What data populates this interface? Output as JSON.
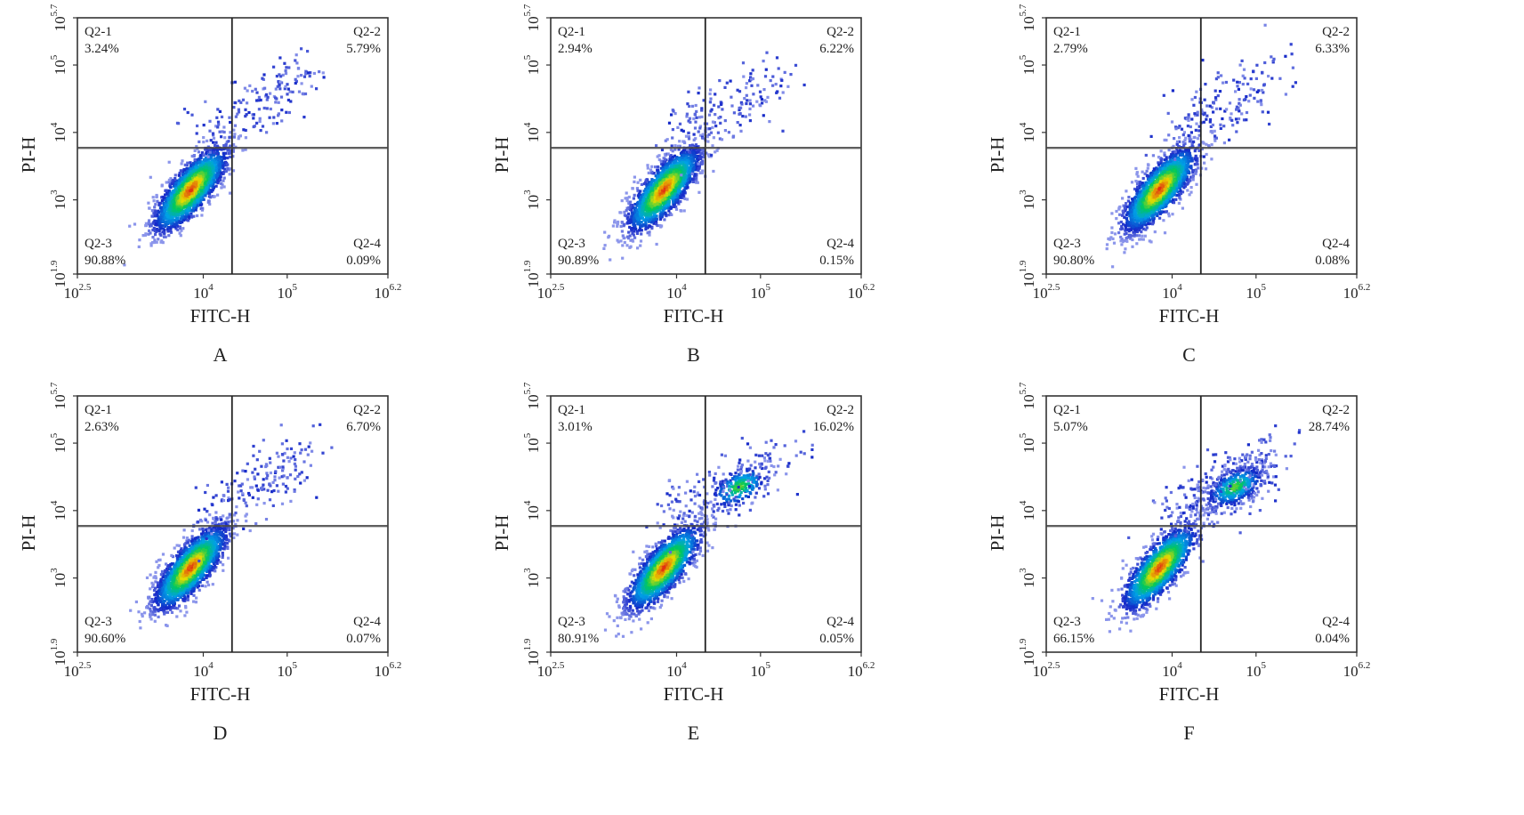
{
  "figure": {
    "panels": [
      {
        "letter": "A"
      },
      {
        "letter": "B"
      },
      {
        "letter": "C"
      },
      {
        "letter": "D"
      },
      {
        "letter": "E"
      },
      {
        "letter": "F"
      }
    ]
  },
  "chart_data": [
    {
      "type": "scatter",
      "panel_label": "A",
      "xlabel": "FITC-H",
      "ylabel": "PI-H",
      "x_scale": "log10",
      "y_scale": "log10",
      "xlim": [
        316.2,
        1584893
      ],
      "ylim": [
        79.4,
        501187
      ],
      "x_tick_labels": [
        {
          "base": "10",
          "exp": "2.5"
        },
        {
          "base": "10",
          "exp": "4"
        },
        {
          "base": "10",
          "exp": "5"
        },
        {
          "base": "10",
          "exp": "6.2"
        }
      ],
      "y_tick_labels": [
        {
          "base": "10",
          "exp": "1.9"
        },
        {
          "base": "10",
          "exp": "3"
        },
        {
          "base": "10",
          "exp": "4"
        },
        {
          "base": "10",
          "exp": "5"
        },
        {
          "base": "10",
          "exp": "5.7"
        }
      ],
      "gate": {
        "x": 22000,
        "y": 5900
      },
      "quadrants": [
        {
          "name": "Q2-1",
          "value": "3.24%",
          "corner": "top-left"
        },
        {
          "name": "Q2-2",
          "value": "5.79%",
          "corner": "top-right"
        },
        {
          "name": "Q2-3",
          "value": "90.88%",
          "corner": "bottom-left"
        },
        {
          "name": "Q2-4",
          "value": "0.09%",
          "corner": "bottom-right"
        }
      ]
    },
    {
      "type": "scatter",
      "panel_label": "B",
      "xlabel": "FITC-H",
      "ylabel": "PI-H",
      "x_scale": "log10",
      "y_scale": "log10",
      "xlim": [
        316.2,
        1584893
      ],
      "ylim": [
        79.4,
        501187
      ],
      "x_tick_labels": [
        {
          "base": "10",
          "exp": "2.5"
        },
        {
          "base": "10",
          "exp": "4"
        },
        {
          "base": "10",
          "exp": "5"
        },
        {
          "base": "10",
          "exp": "6.2"
        }
      ],
      "y_tick_labels": [
        {
          "base": "10",
          "exp": "1.9"
        },
        {
          "base": "10",
          "exp": "3"
        },
        {
          "base": "10",
          "exp": "4"
        },
        {
          "base": "10",
          "exp": "5"
        },
        {
          "base": "10",
          "exp": "5.7"
        }
      ],
      "gate": {
        "x": 22000,
        "y": 5900
      },
      "quadrants": [
        {
          "name": "Q2-1",
          "value": "2.94%",
          "corner": "top-left"
        },
        {
          "name": "Q2-2",
          "value": "6.22%",
          "corner": "top-right"
        },
        {
          "name": "Q2-3",
          "value": "90.89%",
          "corner": "bottom-left"
        },
        {
          "name": "Q2-4",
          "value": "0.15%",
          "corner": "bottom-right"
        }
      ]
    },
    {
      "type": "scatter",
      "panel_label": "C",
      "xlabel": "FITC-H",
      "ylabel": "PI-H",
      "x_scale": "log10",
      "y_scale": "log10",
      "xlim": [
        316.2,
        1584893
      ],
      "ylim": [
        79.4,
        501187
      ],
      "x_tick_labels": [
        {
          "base": "10",
          "exp": "2.5"
        },
        {
          "base": "10",
          "exp": "4"
        },
        {
          "base": "10",
          "exp": "5"
        },
        {
          "base": "10",
          "exp": "6.2"
        }
      ],
      "y_tick_labels": [
        {
          "base": "10",
          "exp": "1.9"
        },
        {
          "base": "10",
          "exp": "3"
        },
        {
          "base": "10",
          "exp": "4"
        },
        {
          "base": "10",
          "exp": "5"
        },
        {
          "base": "10",
          "exp": "5.7"
        }
      ],
      "gate": {
        "x": 22000,
        "y": 5900
      },
      "quadrants": [
        {
          "name": "Q2-1",
          "value": "2.79%",
          "corner": "top-left"
        },
        {
          "name": "Q2-2",
          "value": "6.33%",
          "corner": "top-right"
        },
        {
          "name": "Q2-3",
          "value": "90.80%",
          "corner": "bottom-left"
        },
        {
          "name": "Q2-4",
          "value": "0.08%",
          "corner": "bottom-right"
        }
      ]
    },
    {
      "type": "scatter",
      "panel_label": "D",
      "xlabel": "FITC-H",
      "ylabel": "PI-H",
      "x_scale": "log10",
      "y_scale": "log10",
      "xlim": [
        316.2,
        1584893
      ],
      "ylim": [
        79.4,
        501187
      ],
      "x_tick_labels": [
        {
          "base": "10",
          "exp": "2.5"
        },
        {
          "base": "10",
          "exp": "4"
        },
        {
          "base": "10",
          "exp": "5"
        },
        {
          "base": "10",
          "exp": "6.2"
        }
      ],
      "y_tick_labels": [
        {
          "base": "10",
          "exp": "1.9"
        },
        {
          "base": "10",
          "exp": "3"
        },
        {
          "base": "10",
          "exp": "4"
        },
        {
          "base": "10",
          "exp": "5"
        },
        {
          "base": "10",
          "exp": "5.7"
        }
      ],
      "gate": {
        "x": 22000,
        "y": 5900
      },
      "quadrants": [
        {
          "name": "Q2-1",
          "value": "2.63%",
          "corner": "top-left"
        },
        {
          "name": "Q2-2",
          "value": "6.70%",
          "corner": "top-right"
        },
        {
          "name": "Q2-3",
          "value": "90.60%",
          "corner": "bottom-left"
        },
        {
          "name": "Q2-4",
          "value": "0.07%",
          "corner": "bottom-right"
        }
      ]
    },
    {
      "type": "scatter",
      "panel_label": "E",
      "xlabel": "FITC-H",
      "ylabel": "PI-H",
      "x_scale": "log10",
      "y_scale": "log10",
      "xlim": [
        316.2,
        1584893
      ],
      "ylim": [
        79.4,
        501187
      ],
      "x_tick_labels": [
        {
          "base": "10",
          "exp": "2.5"
        },
        {
          "base": "10",
          "exp": "4"
        },
        {
          "base": "10",
          "exp": "5"
        },
        {
          "base": "10",
          "exp": "6.2"
        }
      ],
      "y_tick_labels": [
        {
          "base": "10",
          "exp": "1.9"
        },
        {
          "base": "10",
          "exp": "3"
        },
        {
          "base": "10",
          "exp": "4"
        },
        {
          "base": "10",
          "exp": "5"
        },
        {
          "base": "10",
          "exp": "5.7"
        }
      ],
      "gate": {
        "x": 22000,
        "y": 5900
      },
      "quadrants": [
        {
          "name": "Q2-1",
          "value": "3.01%",
          "corner": "top-left"
        },
        {
          "name": "Q2-2",
          "value": "16.02%",
          "corner": "top-right"
        },
        {
          "name": "Q2-3",
          "value": "80.91%",
          "corner": "bottom-left"
        },
        {
          "name": "Q2-4",
          "value": "0.05%",
          "corner": "bottom-right"
        }
      ]
    },
    {
      "type": "scatter",
      "panel_label": "F",
      "xlabel": "FITC-H",
      "ylabel": "PI-H",
      "x_scale": "log10",
      "y_scale": "log10",
      "xlim": [
        316.2,
        1584893
      ],
      "ylim": [
        79.4,
        501187
      ],
      "x_tick_labels": [
        {
          "base": "10",
          "exp": "2.5"
        },
        {
          "base": "10",
          "exp": "4"
        },
        {
          "base": "10",
          "exp": "5"
        },
        {
          "base": "10",
          "exp": "6.2"
        }
      ],
      "y_tick_labels": [
        {
          "base": "10",
          "exp": "1.9"
        },
        {
          "base": "10",
          "exp": "3"
        },
        {
          "base": "10",
          "exp": "4"
        },
        {
          "base": "10",
          "exp": "5"
        },
        {
          "base": "10",
          "exp": "5.7"
        }
      ],
      "gate": {
        "x": 22000,
        "y": 5900
      },
      "quadrants": [
        {
          "name": "Q2-1",
          "value": "5.07%",
          "corner": "top-left"
        },
        {
          "name": "Q2-2",
          "value": "28.74%",
          "corner": "top-right"
        },
        {
          "name": "Q2-3",
          "value": "66.15%",
          "corner": "bottom-left"
        },
        {
          "name": "Q2-4",
          "value": "0.04%",
          "corner": "bottom-right"
        }
      ]
    }
  ]
}
